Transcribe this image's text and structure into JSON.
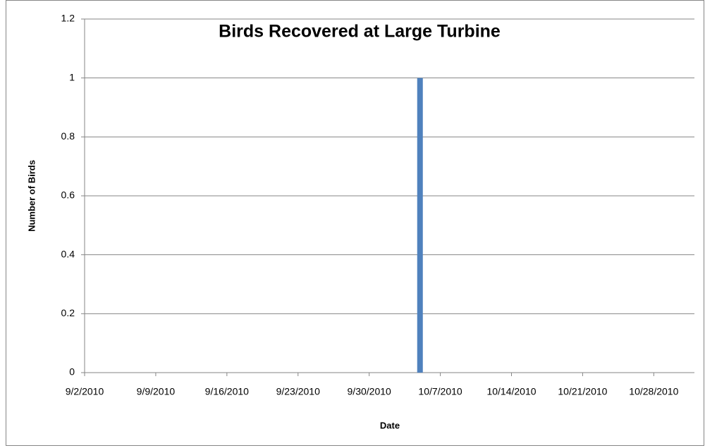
{
  "chart_data": {
    "type": "bar",
    "title": "Birds Recovered at Large Turbine",
    "x_label": "Date",
    "y_label": "Number of Birds",
    "x": [
      "10/5/2010"
    ],
    "values": [
      1
    ],
    "color": "#4f81bd",
    "xlim": [
      "9/2/2010",
      "11/1/2010"
    ],
    "xticks": [
      "9/2/2010",
      "9/9/2010",
      "9/16/2010",
      "9/23/2010",
      "9/30/2010",
      "10/7/2010",
      "10/14/2010",
      "10/21/2010",
      "10/28/2010"
    ],
    "ylim": [
      0,
      1.2
    ],
    "yticks": [
      0,
      0.2,
      0.4,
      0.6,
      0.8,
      1,
      1.2
    ],
    "grid": true
  }
}
